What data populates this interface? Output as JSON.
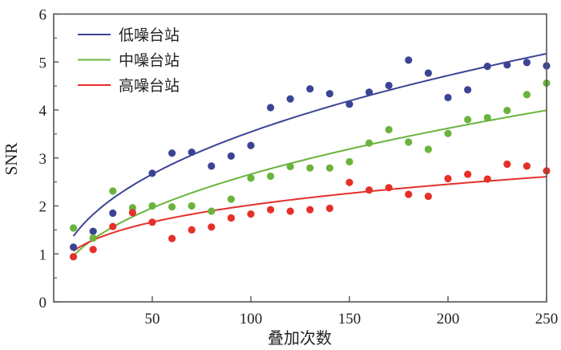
{
  "chart_data": {
    "type": "scatter",
    "title": "",
    "xlabel": "叠加次数",
    "ylabel": "SNR",
    "xlim": [
      0,
      250
    ],
    "ylim": [
      0,
      6
    ],
    "xticks": [
      50,
      100,
      150,
      200,
      250
    ],
    "xtick_labels": [
      "50",
      "100",
      "150",
      "200",
      "250"
    ],
    "yticks": [
      0,
      1,
      2,
      3,
      4,
      5,
      6
    ],
    "ytick_labels": [
      "0",
      "1",
      "2",
      "3",
      "4",
      "5",
      "6"
    ],
    "y_minor_step": 0.5,
    "grid": false,
    "legend_position": "top-left",
    "x": [
      10,
      20,
      30,
      40,
      50,
      60,
      70,
      80,
      90,
      100,
      110,
      120,
      130,
      140,
      150,
      160,
      170,
      180,
      190,
      200,
      210,
      220,
      230,
      240,
      250
    ],
    "series": [
      {
        "name": "低噪台站",
        "color": "#3b4494",
        "values": [
          1.14,
          1.47,
          1.85,
          null,
          2.68,
          3.1,
          3.12,
          2.83,
          3.04,
          3.26,
          4.05,
          4.23,
          4.44,
          4.34,
          4.12,
          4.37,
          4.51,
          5.04,
          4.77,
          4.26,
          4.42,
          4.91,
          4.94,
          4.99,
          4.92
        ],
        "fit": {
          "model": "power",
          "a": 0.529,
          "b": 0.413,
          "x_range": [
            10,
            250
          ]
        }
      },
      {
        "name": "中噪台站",
        "color": "#6ab43c",
        "values": [
          1.54,
          1.33,
          2.31,
          1.96,
          2.0,
          1.98,
          2.0,
          1.89,
          2.14,
          2.58,
          2.62,
          2.82,
          2.79,
          2.79,
          2.92,
          3.31,
          3.59,
          3.33,
          3.18,
          3.51,
          3.8,
          3.84,
          3.99,
          4.32,
          4.56
        ],
        "fit": {
          "model": "power",
          "a": 0.346,
          "b": 0.443,
          "x_range": [
            10,
            250
          ]
        }
      },
      {
        "name": "高噪台站",
        "color": "#e5302a",
        "values": [
          0.94,
          1.09,
          1.57,
          1.86,
          1.66,
          1.32,
          1.5,
          1.56,
          1.75,
          1.83,
          1.92,
          1.89,
          1.92,
          1.95,
          2.49,
          2.33,
          2.38,
          2.24,
          2.2,
          2.57,
          2.66,
          2.56,
          2.87,
          2.83,
          2.73
        ],
        "fit": {
          "model": "power",
          "a": 0.556,
          "b": 0.28,
          "x_range": [
            10,
            250
          ]
        }
      }
    ]
  }
}
